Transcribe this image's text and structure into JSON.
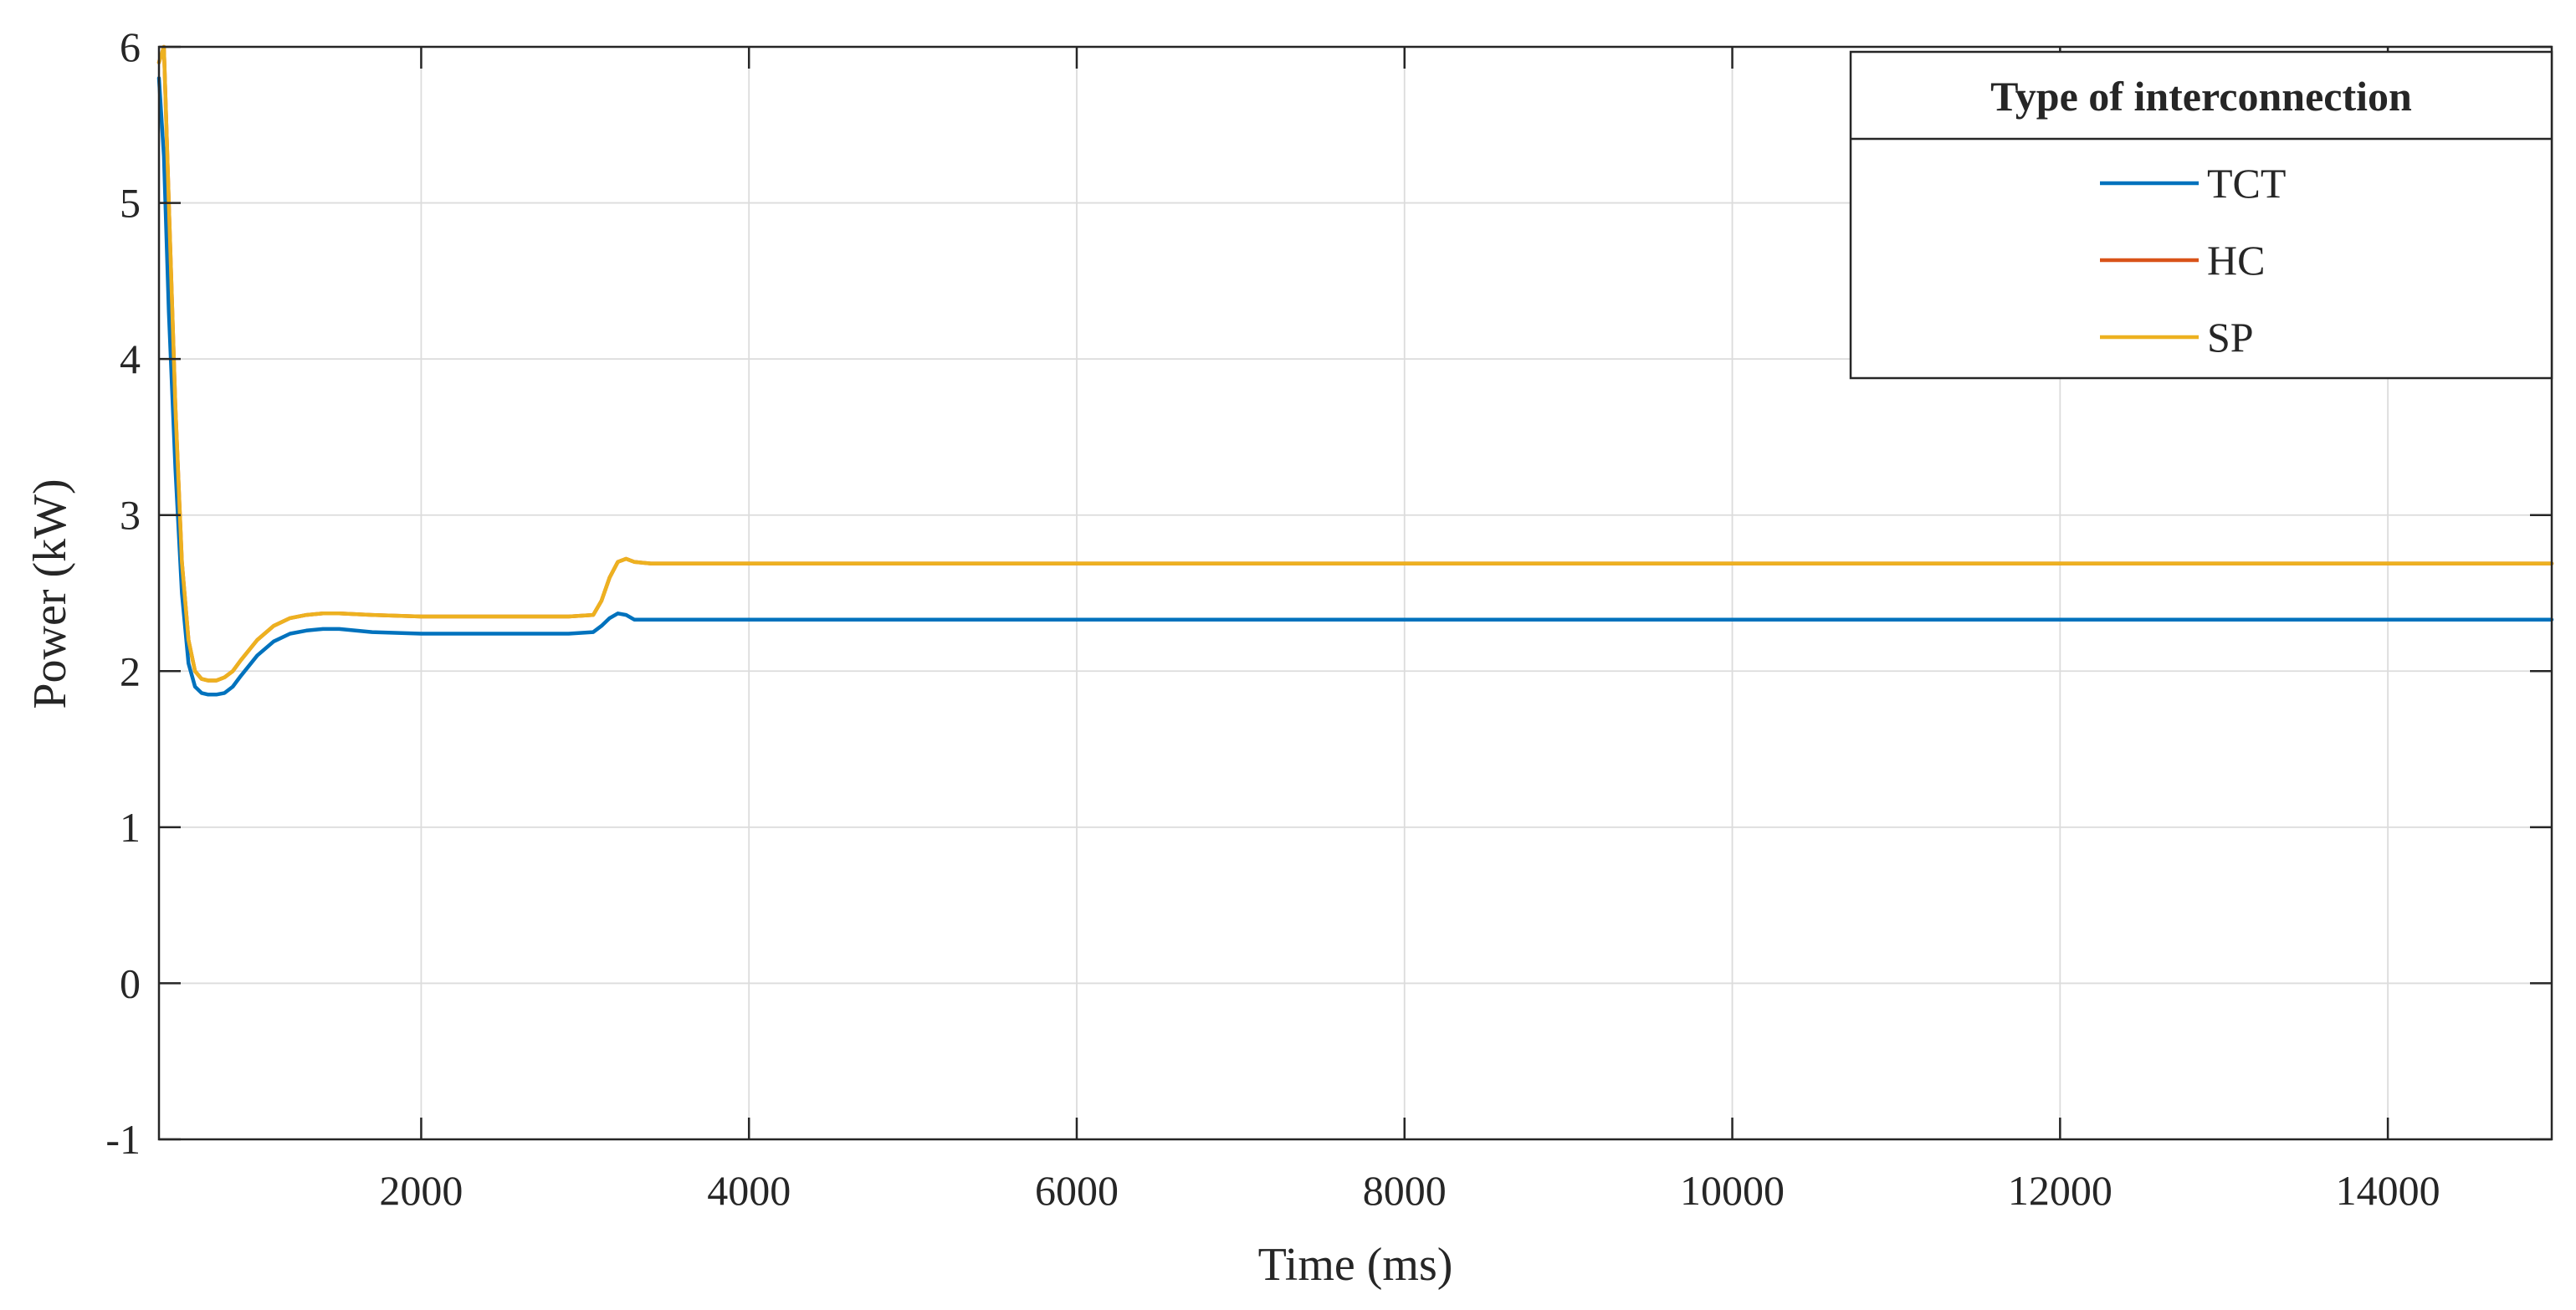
{
  "chart_data": {
    "type": "line",
    "title": "",
    "xlabel": "Time (ms)",
    "ylabel": "Power (kW)",
    "xlim": [
      400,
      15000
    ],
    "ylim": [
      -1,
      6
    ],
    "xticks": [
      2000,
      4000,
      6000,
      8000,
      10000,
      12000,
      14000
    ],
    "xtick_labels": [
      "2000",
      "4000",
      "6000",
      "8000",
      "10000",
      "12000",
      "14000"
    ],
    "yticks": [
      -1,
      0,
      1,
      2,
      3,
      4,
      5,
      6
    ],
    "ytick_labels": [
      "-1",
      "0",
      "1",
      "2",
      "3",
      "4",
      "5",
      "6"
    ],
    "grid": true,
    "legend": {
      "title": "Type of interconnection",
      "placement": "top-right"
    },
    "series": [
      {
        "name": "TCT",
        "color": "#0072BD",
        "x": [
          400,
          430,
          460,
          500,
          540,
          580,
          620,
          660,
          700,
          750,
          800,
          850,
          900,
          1000,
          1100,
          1200,
          1300,
          1400,
          1500,
          1700,
          2000,
          2500,
          2900,
          3050,
          3100,
          3150,
          3200,
          3250,
          3300,
          3400,
          4000,
          6000,
          8000,
          10000,
          12000,
          14000,
          15000
        ],
        "y": [
          5.8,
          5.3,
          4.3,
          3.3,
          2.5,
          2.05,
          1.9,
          1.86,
          1.85,
          1.85,
          1.86,
          1.9,
          1.97,
          2.1,
          2.19,
          2.24,
          2.26,
          2.27,
          2.27,
          2.25,
          2.24,
          2.24,
          2.24,
          2.25,
          2.29,
          2.34,
          2.37,
          2.36,
          2.33,
          2.33,
          2.33,
          2.33,
          2.33,
          2.33,
          2.33,
          2.33,
          2.33
        ]
      },
      {
        "name": "HC",
        "color": "#D95319",
        "x": [
          400,
          430,
          460,
          500,
          540,
          580,
          620,
          660,
          700,
          750,
          800,
          850,
          900,
          1000,
          1100,
          1200,
          1300,
          1400,
          1500,
          1700,
          2000,
          2500,
          2900,
          3050,
          3100,
          3150,
          3200,
          3250,
          3300,
          3400,
          4000,
          6000,
          8000,
          10000,
          12000,
          14000,
          15000
        ],
        "y": [
          5.9,
          6.0,
          5.0,
          3.7,
          2.7,
          2.2,
          2.0,
          1.95,
          1.94,
          1.94,
          1.96,
          2.0,
          2.07,
          2.2,
          2.29,
          2.34,
          2.36,
          2.37,
          2.37,
          2.36,
          2.35,
          2.35,
          2.35,
          2.36,
          2.45,
          2.6,
          2.7,
          2.72,
          2.7,
          2.69,
          2.69,
          2.69,
          2.69,
          2.69,
          2.69,
          2.69,
          2.69
        ]
      },
      {
        "name": "SP",
        "color": "#EDB120",
        "x": [
          400,
          430,
          460,
          500,
          540,
          580,
          620,
          660,
          700,
          750,
          800,
          850,
          900,
          1000,
          1100,
          1200,
          1300,
          1400,
          1500,
          1700,
          2000,
          2500,
          2900,
          3050,
          3100,
          3150,
          3200,
          3250,
          3300,
          3400,
          4000,
          6000,
          8000,
          10000,
          12000,
          14000,
          15000
        ],
        "y": [
          5.9,
          6.0,
          5.0,
          3.7,
          2.7,
          2.2,
          2.0,
          1.95,
          1.94,
          1.94,
          1.96,
          2.0,
          2.07,
          2.2,
          2.29,
          2.34,
          2.36,
          2.37,
          2.37,
          2.36,
          2.35,
          2.35,
          2.35,
          2.36,
          2.45,
          2.6,
          2.7,
          2.72,
          2.7,
          2.69,
          2.69,
          2.69,
          2.69,
          2.69,
          2.69,
          2.69,
          2.69
        ]
      }
    ]
  }
}
